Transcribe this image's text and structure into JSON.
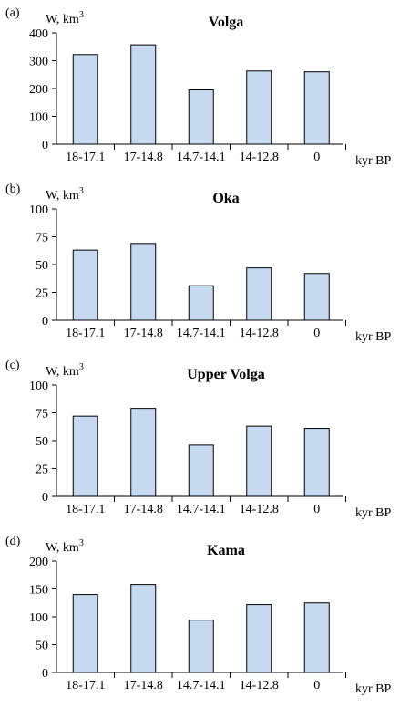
{
  "xunit": "kyr BP",
  "chart_data": [
    {
      "type": "bar",
      "panel": "(a)",
      "title": "Volga",
      "ylabel": "W, km",
      "ylabel_sup": "3",
      "xlabel": "kyr BP",
      "categories": [
        "18-17.1",
        "17-14.8",
        "14.7-14.1",
        "14-12.8",
        "0"
      ],
      "values": [
        322,
        357,
        195,
        263,
        260
      ],
      "ylim": [
        0,
        400
      ],
      "yticks": [
        0,
        100,
        200,
        300,
        400
      ],
      "grid": false,
      "bar_color": "#c5d9f1"
    },
    {
      "type": "bar",
      "panel": "(b)",
      "title": "Oka",
      "ylabel": "W, km",
      "ylabel_sup": "3",
      "xlabel": "kyr BP",
      "categories": [
        "18-17.1",
        "17-14.8",
        "14.7-14.1",
        "14-12.8",
        "0"
      ],
      "values": [
        63,
        69,
        31,
        47,
        42
      ],
      "ylim": [
        0,
        100
      ],
      "yticks": [
        0,
        25,
        50,
        75,
        100
      ],
      "grid": false,
      "bar_color": "#c5d9f1"
    },
    {
      "type": "bar",
      "panel": "(c)",
      "title": "Upper Volga",
      "ylabel": "W, km",
      "ylabel_sup": "3",
      "xlabel": "kyr BP",
      "categories": [
        "18-17.1",
        "17-14.8",
        "14.7-14.1",
        "14-12.8",
        "0"
      ],
      "values": [
        72,
        79,
        46,
        63,
        61
      ],
      "ylim": [
        0,
        100
      ],
      "yticks": [
        0,
        25,
        50,
        75,
        100
      ],
      "grid": false,
      "bar_color": "#c5d9f1"
    },
    {
      "type": "bar",
      "panel": "(d)",
      "title": "Kama",
      "ylabel": "W, km",
      "ylabel_sup": "3",
      "xlabel": "kyr BP",
      "categories": [
        "18-17.1",
        "17-14.8",
        "14.7-14.1",
        "14-12.8",
        "0"
      ],
      "values": [
        140,
        158,
        94,
        122,
        125
      ],
      "ylim": [
        0,
        200
      ],
      "yticks": [
        0,
        50,
        100,
        150,
        200
      ],
      "grid": false,
      "bar_color": "#c5d9f1"
    }
  ]
}
